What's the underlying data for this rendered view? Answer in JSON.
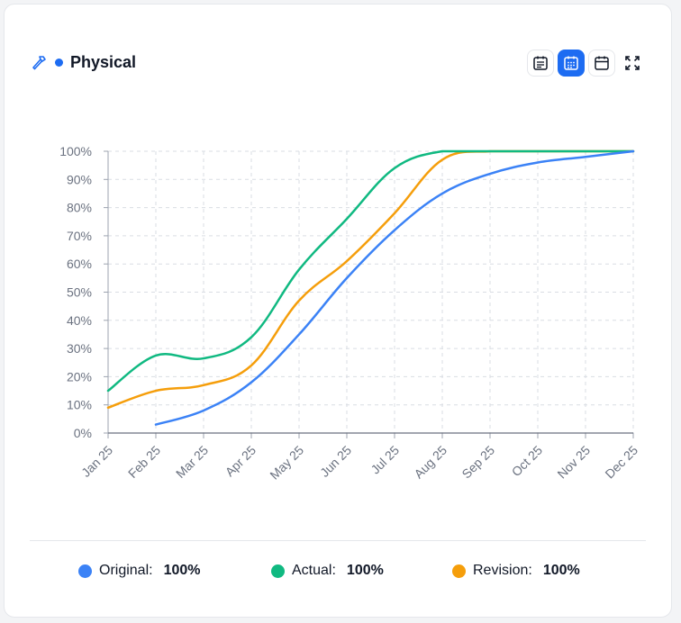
{
  "header": {
    "title": "Physical",
    "title_icon": "hammer-icon",
    "accent": "#1d6cf2",
    "toolbar": [
      {
        "icon": "calendar-list-icon",
        "active": false
      },
      {
        "icon": "calendar-grid-icon",
        "active": true
      },
      {
        "icon": "calendar-icon",
        "active": false
      },
      {
        "icon": "expand-icon",
        "active": false
      }
    ]
  },
  "chart_data": {
    "type": "line",
    "title": "Physical",
    "categories": [
      "Jan 25",
      "Feb 25",
      "Mar 25",
      "Apr 25",
      "May 25",
      "Jun 25",
      "Jul 25",
      "Aug 25",
      "Sep 25",
      "Oct 25",
      "Nov 25",
      "Dec 25"
    ],
    "ylim": [
      0,
      100
    ],
    "yticks": [
      "0%",
      "10%",
      "20%",
      "30%",
      "40%",
      "50%",
      "60%",
      "70%",
      "80%",
      "90%",
      "100%"
    ],
    "grid": true,
    "series": [
      {
        "name": "Original",
        "color": "#3b82f6",
        "values": [
          null,
          3,
          8,
          18,
          35,
          55,
          72,
          85,
          92,
          96,
          98,
          100
        ]
      },
      {
        "name": "Actual",
        "color": "#10b981",
        "values": [
          15,
          27.5,
          26.5,
          34,
          58,
          76,
          94,
          100,
          100,
          100,
          100,
          100
        ]
      },
      {
        "name": "Revision",
        "color": "#f59e0b",
        "values": [
          9,
          15,
          17,
          24,
          47,
          61,
          78,
          97,
          100,
          100,
          100,
          100
        ]
      }
    ]
  },
  "legend": [
    {
      "label": "Original:",
      "value": "100%",
      "color": "#3b82f6"
    },
    {
      "label": "Actual:",
      "value": "100%",
      "color": "#10b981"
    },
    {
      "label": "Revision:",
      "value": "100%",
      "color": "#f59e0b"
    }
  ]
}
